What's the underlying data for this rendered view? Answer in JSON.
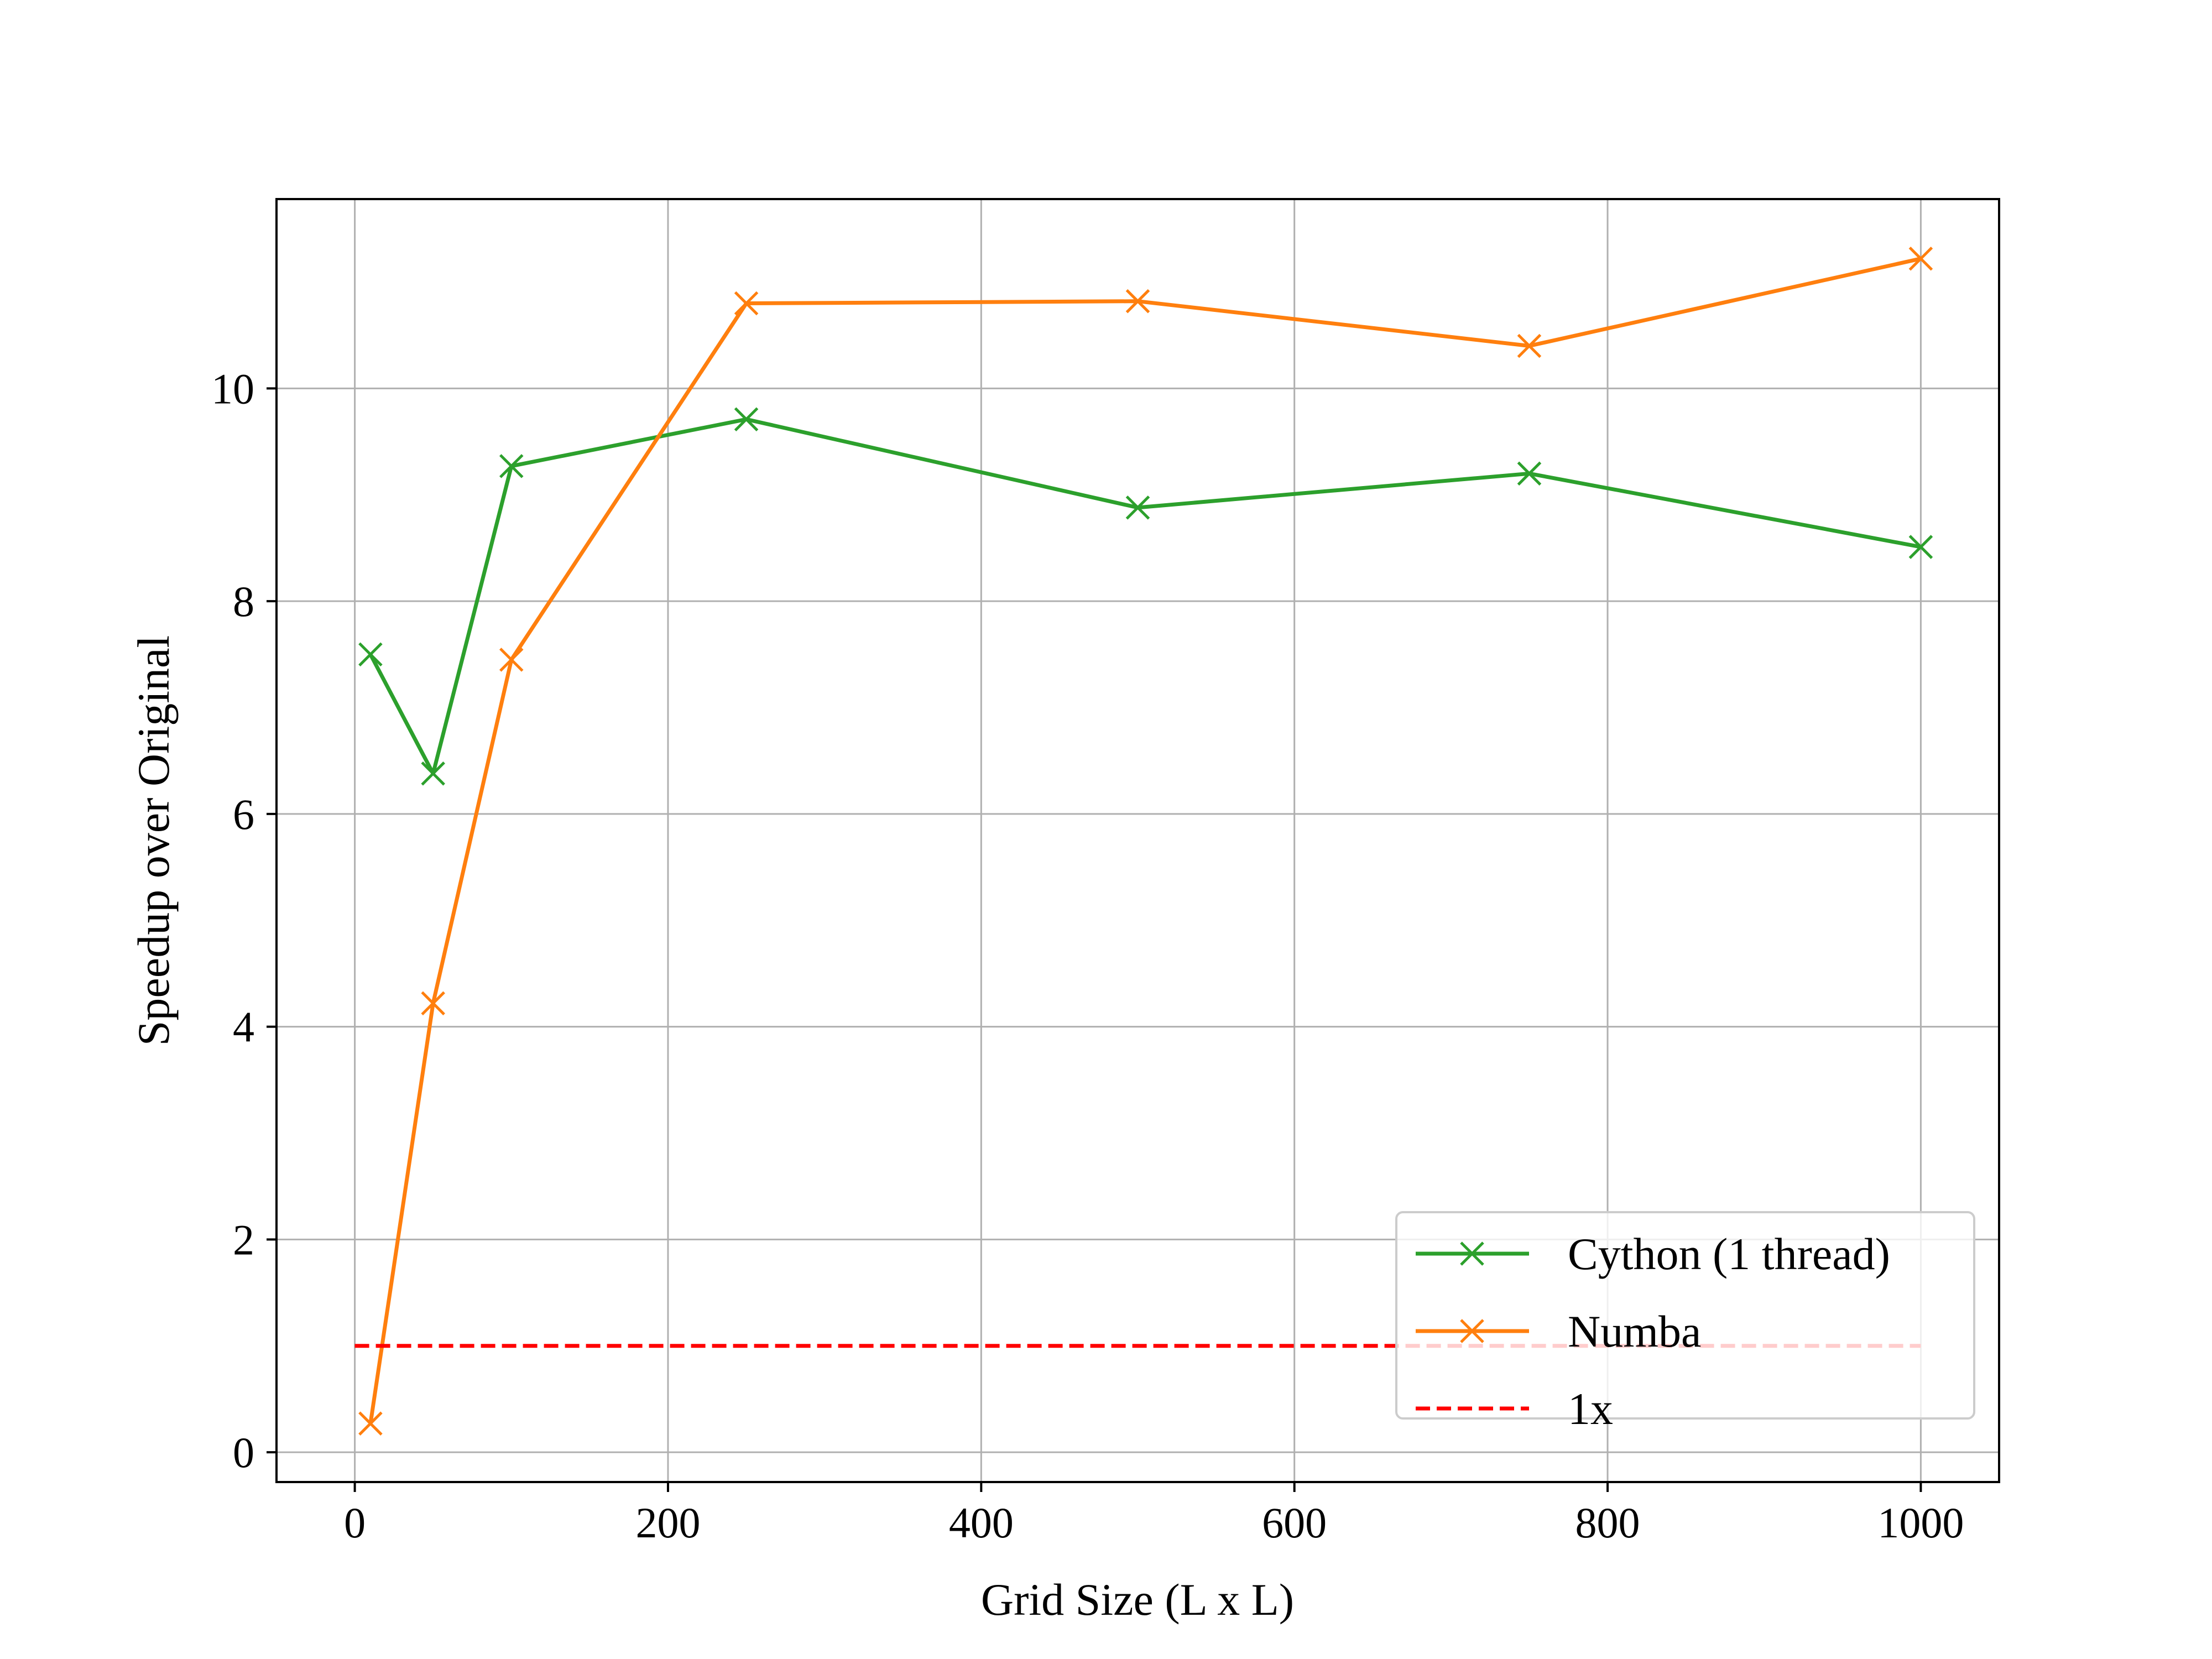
{
  "chart_data": {
    "type": "line",
    "xlabel": "Grid Size (L x L)",
    "ylabel": "Speedup over Original",
    "xlim": [
      -50,
      1050
    ],
    "ylim": [
      -0.28,
      11.78
    ],
    "xticks": [
      0,
      200,
      400,
      600,
      800,
      1000
    ],
    "yticks": [
      0,
      2,
      4,
      6,
      8,
      10
    ],
    "grid": true,
    "legend_position": "lower-right",
    "series": [
      {
        "name": "Cython (1 thread)",
        "color": "#2ca02c",
        "marker": "x",
        "linestyle": "solid",
        "x": [
          10,
          50,
          100,
          250,
          500,
          750,
          1000
        ],
        "y": [
          7.5,
          6.38,
          9.27,
          9.71,
          8.88,
          9.2,
          8.51
        ]
      },
      {
        "name": "Numba",
        "color": "#ff7f0e",
        "marker": "x",
        "linestyle": "solid",
        "x": [
          10,
          50,
          100,
          250,
          500,
          750,
          1000
        ],
        "y": [
          0.27,
          4.22,
          7.45,
          10.8,
          10.82,
          10.4,
          11.22
        ]
      },
      {
        "name": "1x",
        "color": "#ff0000",
        "marker": "none",
        "linestyle": "dashed",
        "x": [
          0,
          1000
        ],
        "y": [
          1,
          1
        ]
      }
    ]
  }
}
